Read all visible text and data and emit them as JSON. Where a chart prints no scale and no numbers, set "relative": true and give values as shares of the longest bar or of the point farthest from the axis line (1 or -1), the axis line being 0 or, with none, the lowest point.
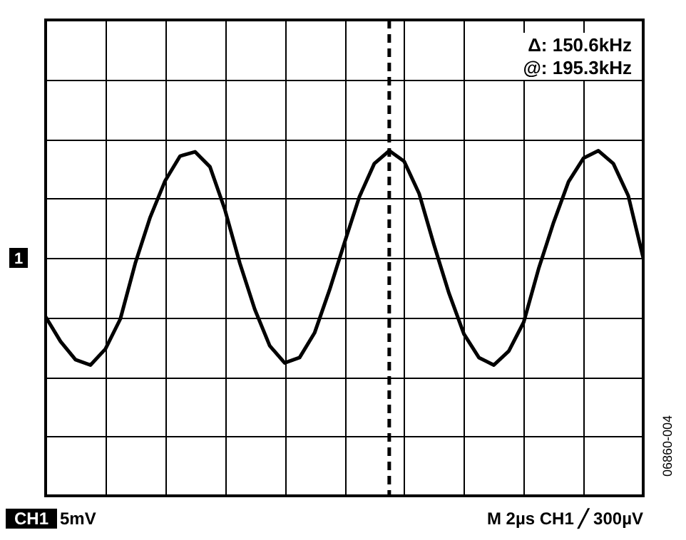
{
  "chart_data": {
    "type": "line",
    "relative": true,
    "categories": [
      null,
      null,
      null,
      null,
      null,
      null,
      null,
      null,
      null,
      null,
      null,
      null,
      null,
      null,
      null,
      null,
      null,
      null,
      null,
      null,
      null,
      null,
      null,
      null,
      null,
      null,
      null,
      null,
      null,
      null,
      null,
      null,
      null,
      null,
      null,
      null,
      null,
      null,
      null,
      null,
      null
    ],
    "series": [
      {
        "color": "#000000",
        "values": [
          -0.55,
          -0.78,
          -0.95,
          -1,
          -0.85,
          -0.57,
          -0.05,
          0.38,
          0.72,
          0.95,
          0.99,
          0.85,
          0.45,
          -0.05,
          -0.48,
          -0.82,
          -0.98,
          -0.93,
          -0.7,
          -0.3,
          0.14,
          0.57,
          0.88,
          1,
          0.9,
          0.6,
          0.12,
          -0.33,
          -0.71,
          -0.93,
          -1,
          -0.87,
          -0.6,
          -0.1,
          0.33,
          0.71,
          0.93,
          1,
          0.88,
          0.58,
          0
        ]
      }
    ],
    "grid": true,
    "annotations": [
      "Δ: 150.6kHz",
      "@: 195.3kHz",
      "1",
      "CH1",
      "5mV",
      "M 2µs CH1 ╱ 300µV",
      "06860-004"
    ]
  }
}
